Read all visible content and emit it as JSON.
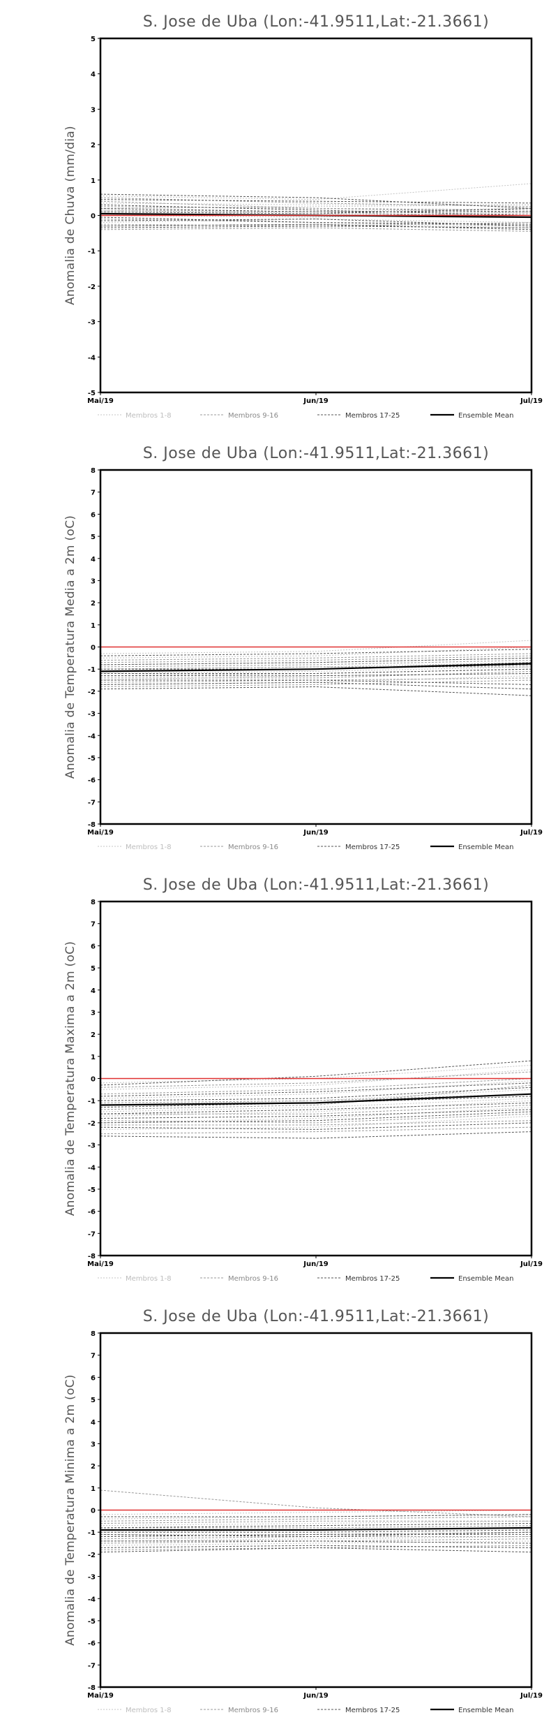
{
  "chart_data": [
    {
      "type": "line",
      "title": "S. Jose de Uba (Lon:-41.9511,Lat:-21.3661)",
      "xlabel": "",
      "ylabel": "Anomalia de Chuva (mm/dia)",
      "x": [
        "Mai/19",
        "Jun/19",
        "Jul/19"
      ],
      "ylim": [
        -5,
        5
      ],
      "yticks": [
        -5,
        -4,
        -3,
        -2,
        -1,
        0,
        1,
        2,
        3,
        4,
        5
      ],
      "series": [
        {
          "name": "Membros 1-8",
          "values": [
            [
              0.55,
              0.45,
              0.9
            ],
            [
              0.2,
              0.25,
              0.3
            ],
            [
              0.0,
              -0.05,
              0.1
            ],
            [
              -0.2,
              -0.1,
              -0.2
            ],
            [
              0.35,
              0.3,
              0.3
            ],
            [
              0.1,
              0.1,
              0.2
            ],
            [
              -0.3,
              -0.25,
              -0.35
            ],
            [
              0.15,
              0.05,
              0.0
            ]
          ]
        },
        {
          "name": "Membros 9-16",
          "values": [
            [
              0.4,
              0.2,
              0.1
            ],
            [
              -0.1,
              -0.2,
              -0.3
            ],
            [
              0.25,
              0.2,
              0.15
            ],
            [
              -0.25,
              -0.3,
              -0.2
            ],
            [
              0.05,
              0.0,
              0.05
            ],
            [
              0.5,
              0.35,
              0.25
            ],
            [
              -0.4,
              -0.35,
              -0.45
            ],
            [
              0.15,
              0.1,
              -0.05
            ]
          ]
        },
        {
          "name": "Membros 17-25",
          "values": [
            [
              0.6,
              0.5,
              0.2
            ],
            [
              -0.15,
              -0.1,
              -0.3
            ],
            [
              0.3,
              0.15,
              0.0
            ],
            [
              -0.3,
              -0.25,
              -0.4
            ],
            [
              0.1,
              0.05,
              0.2
            ],
            [
              0.45,
              0.4,
              0.35
            ],
            [
              -0.05,
              -0.2,
              -0.25
            ],
            [
              0.2,
              0.1,
              0.1
            ],
            [
              -0.35,
              -0.3,
              -0.35
            ]
          ]
        },
        {
          "name": "Ensemble Mean",
          "values": [
            0.05,
            0.0,
            -0.05
          ]
        }
      ],
      "reference": {
        "value": 0,
        "color": "#e03030"
      },
      "legend": "bottom"
    },
    {
      "type": "line",
      "title": "S. Jose de Uba (Lon:-41.9511,Lat:-21.3661)",
      "xlabel": "",
      "ylabel": "Anomalia de Temperatura Media a 2m (oC)",
      "x": [
        "Mai/19",
        "Jun/19",
        "Jul/19"
      ],
      "ylim": [
        -8,
        8
      ],
      "yticks": [
        -8,
        -7,
        -6,
        -5,
        -4,
        -3,
        -2,
        -1,
        0,
        1,
        2,
        3,
        4,
        5,
        6,
        7,
        8
      ],
      "series": [
        {
          "name": "Membros 1-8",
          "values": [
            [
              -0.5,
              -0.4,
              0.0
            ],
            [
              -1.0,
              -0.9,
              -0.7
            ],
            [
              -1.5,
              -1.3,
              -1.2
            ],
            [
              -0.8,
              -0.7,
              -0.5
            ],
            [
              -1.2,
              -1.1,
              -0.9
            ],
            [
              -1.7,
              -1.6,
              -1.3
            ],
            [
              -0.3,
              -0.2,
              0.3
            ],
            [
              -1.1,
              -1.0,
              -0.8
            ]
          ]
        },
        {
          "name": "Membros 9-16",
          "values": [
            [
              -0.6,
              -0.5,
              -0.3
            ],
            [
              -1.3,
              -1.2,
              -1.0
            ],
            [
              -1.8,
              -1.7,
              -1.5
            ],
            [
              -0.9,
              -0.8,
              -0.6
            ],
            [
              -1.4,
              -1.4,
              -1.1
            ],
            [
              -1.0,
              -0.9,
              -0.9
            ],
            [
              -1.6,
              -1.5,
              -1.4
            ],
            [
              -0.7,
              -0.6,
              -0.4
            ]
          ]
        },
        {
          "name": "Membros 17-25",
          "values": [
            [
              -1.9,
              -1.8,
              -2.2
            ],
            [
              -1.1,
              -1.0,
              -0.8
            ],
            [
              -1.5,
              -1.5,
              -1.7
            ],
            [
              -0.4,
              -0.3,
              -0.1
            ],
            [
              -1.2,
              -1.2,
              -1.0
            ],
            [
              -1.7,
              -1.6,
              -1.9
            ],
            [
              -0.8,
              -0.7,
              -0.5
            ],
            [
              -1.3,
              -1.3,
              -1.2
            ],
            [
              -1.0,
              -1.0,
              -0.7
            ]
          ]
        },
        {
          "name": "Ensemble Mean",
          "values": [
            -1.1,
            -1.0,
            -0.75
          ]
        }
      ],
      "reference": {
        "value": 0,
        "color": "#e03030"
      },
      "legend": "bottom"
    },
    {
      "type": "line",
      "title": "S. Jose de Uba (Lon:-41.9511,Lat:-21.3661)",
      "xlabel": "",
      "ylabel": "Anomalia de Temperatura Maxima a 2m (oC)",
      "x": [
        "Mai/19",
        "Jun/19",
        "Jul/19"
      ],
      "ylim": [
        -8,
        8
      ],
      "yticks": [
        -8,
        -7,
        -6,
        -5,
        -4,
        -3,
        -2,
        -1,
        0,
        1,
        2,
        3,
        4,
        5,
        6,
        7,
        8
      ],
      "series": [
        {
          "name": "Membros 1-8",
          "values": [
            [
              -0.5,
              -0.3,
              0.4
            ],
            [
              -1.2,
              -1.0,
              -0.5
            ],
            [
              -2.0,
              -1.8,
              -1.3
            ],
            [
              -0.9,
              -0.7,
              -0.1
            ],
            [
              -1.5,
              -1.3,
              -0.9
            ],
            [
              -2.3,
              -2.2,
              -1.7
            ],
            [
              -0.2,
              0.0,
              0.6
            ],
            [
              -1.7,
              -1.5,
              -1.0
            ]
          ]
        },
        {
          "name": "Membros 9-16",
          "values": [
            [
              -0.7,
              -0.5,
              0.0
            ],
            [
              -1.9,
              -2.0,
              -1.6
            ],
            [
              -2.5,
              -2.4,
              -2.2
            ],
            [
              -1.1,
              -1.0,
              -0.7
            ],
            [
              -1.4,
              -1.2,
              -0.3
            ],
            [
              -2.1,
              -2.1,
              -1.9
            ],
            [
              -0.4,
              -0.2,
              0.3
            ],
            [
              -1.6,
              -1.6,
              -1.2
            ]
          ]
        },
        {
          "name": "Membros 17-25",
          "values": [
            [
              -2.6,
              -2.7,
              -2.4
            ],
            [
              -1.0,
              -0.9,
              -0.4
            ],
            [
              -1.8,
              -1.7,
              -1.4
            ],
            [
              -0.3,
              0.1,
              0.8
            ],
            [
              -1.3,
              -1.1,
              -0.8
            ],
            [
              -2.2,
              -2.3,
              -2.0
            ],
            [
              -0.8,
              -0.6,
              -0.2
            ],
            [
              -1.6,
              -1.4,
              -1.1
            ],
            [
              -2.0,
              -1.9,
              -1.5
            ]
          ]
        },
        {
          "name": "Ensemble Mean",
          "values": [
            -1.2,
            -1.1,
            -0.7
          ]
        }
      ],
      "reference": {
        "value": 0,
        "color": "#e03030"
      },
      "legend": "bottom"
    },
    {
      "type": "line",
      "title": "S. Jose de Uba (Lon:-41.9511,Lat:-21.3661)",
      "xlabel": "",
      "ylabel": "Anomalia de Temperatura Minima a 2m (oC)",
      "x": [
        "Mai/19",
        "Jun/19",
        "Jul/19"
      ],
      "ylim": [
        -8,
        8
      ],
      "yticks": [
        -8,
        -7,
        -6,
        -5,
        -4,
        -3,
        -2,
        -1,
        0,
        1,
        2,
        3,
        4,
        5,
        6,
        7,
        8
      ],
      "series": [
        {
          "name": "Membros 1-8",
          "values": [
            [
              -0.4,
              -0.3,
              -0.2
            ],
            [
              -0.9,
              -0.9,
              -0.8
            ],
            [
              -1.4,
              -1.3,
              -1.2
            ],
            [
              -0.7,
              -0.6,
              -0.5
            ],
            [
              -1.1,
              -1.1,
              -1.0
            ],
            [
              -1.6,
              -1.5,
              -1.4
            ],
            [
              -0.2,
              -0.1,
              0.0
            ],
            [
              -1.0,
              -0.9,
              -0.8
            ]
          ]
        },
        {
          "name": "Membros 9-16",
          "values": [
            [
              0.9,
              0.1,
              -0.3
            ],
            [
              -1.2,
              -1.1,
              -1.0
            ],
            [
              -1.8,
              -1.7,
              -1.6
            ],
            [
              -0.5,
              -0.4,
              -0.3
            ],
            [
              -1.3,
              -1.2,
              -1.2
            ],
            [
              -0.8,
              -0.8,
              -0.7
            ],
            [
              -1.5,
              -1.4,
              -1.3
            ],
            [
              -0.6,
              -0.5,
              -0.5
            ]
          ]
        },
        {
          "name": "Membros 17-25",
          "values": [
            [
              -1.9,
              -1.7,
              -1.9
            ],
            [
              -1.0,
              -1.0,
              -0.9
            ],
            [
              -1.4,
              -1.4,
              -1.5
            ],
            [
              -0.3,
              -0.3,
              -0.2
            ],
            [
              -1.2,
              -1.1,
              -1.1
            ],
            [
              -1.7,
              -1.6,
              -1.7
            ],
            [
              -0.8,
              -0.7,
              -0.6
            ],
            [
              -1.1,
              -1.2,
              -1.0
            ],
            [
              -0.9,
              -0.9,
              -0.8
            ]
          ]
        },
        {
          "name": "Ensemble Mean",
          "values": [
            -0.9,
            -0.9,
            -0.8
          ]
        }
      ],
      "reference": {
        "value": 0,
        "color": "#e03030"
      },
      "legend": "bottom"
    }
  ]
}
